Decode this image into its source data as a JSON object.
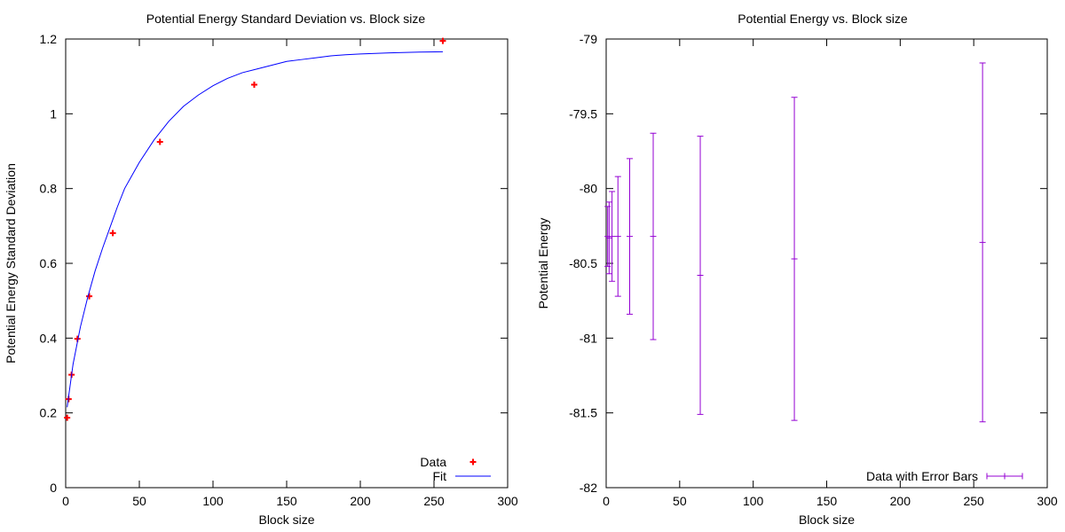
{
  "chart_data": [
    {
      "type": "scatter",
      "title": "Potential Energy Standard Deviation vs. Block size",
      "xlabel": "Block size",
      "ylabel": "Potential Energy Standard Deviation",
      "xlim": [
        0,
        300
      ],
      "ylim": [
        0,
        1.2
      ],
      "xticks": [
        0,
        50,
        100,
        150,
        200,
        250,
        300
      ],
      "yticks": [
        0,
        0.2,
        0.4,
        0.6,
        0.8,
        1,
        1.2
      ],
      "xtick_labels": [
        "0",
        "50",
        "100",
        "150",
        "200",
        "250",
        "300"
      ],
      "ytick_labels": [
        "0",
        "0.2",
        "0.4",
        "0.6",
        "0.8",
        "1",
        "1.2"
      ],
      "grid": false,
      "legend_position": "bottom-right",
      "series": [
        {
          "name": "Data",
          "kind": "points",
          "marker": "plus",
          "color": "#ff0000",
          "x": [
            1,
            2,
            4,
            8,
            16,
            32,
            64,
            128,
            256
          ],
          "y": [
            0.187,
            0.237,
            0.302,
            0.398,
            0.512,
            0.681,
            0.925,
            1.078,
            1.195
          ]
        },
        {
          "name": "Fit",
          "kind": "line",
          "color": "#0000ff",
          "x": [
            1,
            5,
            10,
            15,
            20,
            25,
            30,
            35,
            40,
            45,
            50,
            60,
            70,
            80,
            90,
            100,
            110,
            120,
            130,
            140,
            150,
            160,
            170,
            180,
            190,
            200,
            220,
            240,
            256
          ],
          "y": [
            0.215,
            0.33,
            0.43,
            0.51,
            0.58,
            0.64,
            0.695,
            0.75,
            0.8,
            0.835,
            0.87,
            0.93,
            0.98,
            1.02,
            1.05,
            1.075,
            1.095,
            1.11,
            1.12,
            1.13,
            1.14,
            1.145,
            1.15,
            1.155,
            1.158,
            1.16,
            1.163,
            1.165,
            1.166
          ]
        }
      ]
    },
    {
      "type": "scatter",
      "title": "Potential Energy vs. Block size",
      "xlabel": "Block size",
      "ylabel": "Potential Energy",
      "xlim": [
        0,
        300
      ],
      "ylim": [
        -82,
        -79
      ],
      "xticks": [
        0,
        50,
        100,
        150,
        200,
        250,
        300
      ],
      "yticks": [
        -82,
        -81.5,
        -81,
        -80.5,
        -80,
        -79.5,
        -79
      ],
      "xtick_labels": [
        "0",
        "50",
        "100",
        "150",
        "200",
        "250",
        "300"
      ],
      "ytick_labels": [
        "-82",
        "-81.5",
        "-81",
        "-80.5",
        "-80",
        "-79.5",
        "-79"
      ],
      "grid": false,
      "legend_position": "bottom-right",
      "series": [
        {
          "name": "Data with Error Bars",
          "kind": "errorbar",
          "color": "#9400d3",
          "x": [
            1,
            2,
            4,
            8,
            16,
            32,
            64,
            128,
            256
          ],
          "y": [
            -80.32,
            -80.33,
            -80.32,
            -80.32,
            -80.32,
            -80.32,
            -80.58,
            -80.47,
            -80.36
          ],
          "yerr": [
            0.2,
            0.24,
            0.3,
            0.4,
            0.52,
            0.69,
            0.93,
            1.08,
            1.2
          ]
        }
      ]
    }
  ]
}
